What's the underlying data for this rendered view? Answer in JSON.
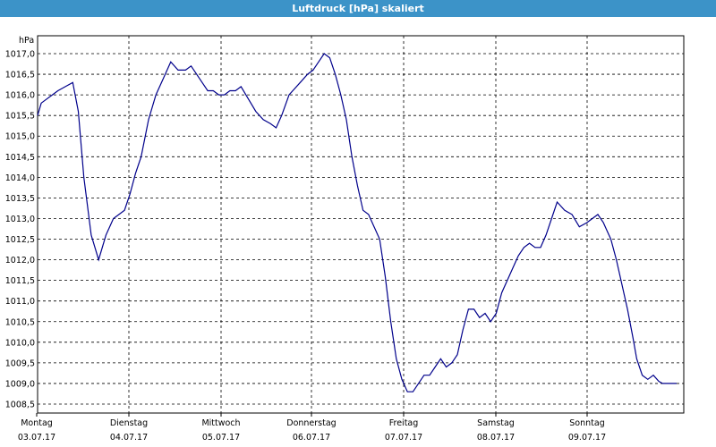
{
  "chart_data": {
    "type": "line",
    "title": "Luftdruck [hPa] skaliert",
    "ylabel": "hPa",
    "ylim": [
      1008.5,
      1017.0
    ],
    "yticks": [
      "1017,0",
      "1016,5",
      "1016,0",
      "1015,5",
      "1015,0",
      "1014,5",
      "1014,0",
      "1013,5",
      "1013,0",
      "1012,5",
      "1012,0",
      "1011,5",
      "1011,0",
      "1010,5",
      "1010,0",
      "1009,5",
      "1009,0",
      "1008,5"
    ],
    "xticks": [
      {
        "day": "Montag",
        "date": "03.07.17"
      },
      {
        "day": "Dienstag",
        "date": "04.07.17"
      },
      {
        "day": "Mittwoch",
        "date": "05.07.17"
      },
      {
        "day": "Donnerstag",
        "date": "06.07.17"
      },
      {
        "day": "Freitag",
        "date": "07.07.17"
      },
      {
        "day": "Samstag",
        "date": "08.07.17"
      },
      {
        "day": "Sonntag",
        "date": "09.07.17"
      }
    ],
    "grid": true,
    "line_color": "#00008b",
    "series": [
      {
        "x_days": [
          0,
          0.04,
          0.1,
          0.16,
          0.22,
          0.3,
          0.38,
          0.44,
          0.5,
          0.58,
          0.66,
          0.74,
          0.76,
          0.82,
          0.88,
          0.94,
          1.0,
          1.06,
          1.12,
          1.2,
          1.28,
          1.36,
          1.44,
          1.52,
          1.6,
          1.66,
          1.72,
          1.78,
          1.84,
          1.9,
          1.96,
          2.02,
          2.08,
          2.14,
          2.2,
          2.28,
          2.36,
          2.44,
          2.52,
          2.58,
          2.64,
          2.72,
          2.76,
          2.84,
          2.92,
          2.98,
          3.04,
          3.1,
          3.16,
          3.22,
          3.28,
          3.34,
          3.4,
          3.46,
          3.52,
          3.58,
          3.64,
          3.7,
          3.76,
          3.82,
          3.88,
          3.94,
          4.0,
          4.06,
          4.12,
          4.18,
          4.24,
          4.3,
          4.36,
          4.42,
          4.48,
          4.54,
          4.6,
          4.66,
          4.72,
          4.78,
          4.84,
          4.9,
          4.96,
          5.02,
          5.08,
          5.14,
          5.2,
          5.26,
          5.32,
          5.38,
          5.44,
          5.5,
          5.56,
          5.62,
          5.7,
          5.78,
          5.86,
          5.94,
          6.0,
          6.06,
          6.12,
          6.16,
          6.2,
          6.26,
          6.32,
          6.38,
          6.44,
          6.48,
          6.54,
          6.6,
          6.66,
          6.72,
          6.76,
          6.82,
          6.88,
          6.94,
          7.0,
          7.06
        ],
        "values": [
          1015.5,
          1015.8,
          1015.9,
          1016.0,
          1016.1,
          1016.2,
          1016.3,
          1015.6,
          1014.0,
          1012.6,
          1012.0,
          1012.6,
          1012.7,
          1013.0,
          1013.1,
          1013.2,
          1013.6,
          1014.1,
          1014.5,
          1015.4,
          1016.0,
          1016.4,
          1016.8,
          1016.6,
          1016.6,
          1016.7,
          1016.5,
          1016.3,
          1016.1,
          1016.1,
          1016.0,
          1016.0,
          1016.1,
          1016.1,
          1016.2,
          1015.9,
          1015.6,
          1015.4,
          1015.3,
          1015.2,
          1015.5,
          1016.0,
          1016.1,
          1016.3,
          1016.5,
          1016.6,
          1016.8,
          1017.0,
          1016.9,
          1016.5,
          1016.0,
          1015.4,
          1014.5,
          1013.8,
          1013.2,
          1013.1,
          1012.8,
          1012.5,
          1011.6,
          1010.5,
          1009.6,
          1009.1,
          1008.8,
          1008.8,
          1009.0,
          1009.2,
          1009.2,
          1009.4,
          1009.6,
          1009.4,
          1009.5,
          1009.7,
          1010.3,
          1010.8,
          1010.8,
          1010.6,
          1010.7,
          1010.5,
          1010.7,
          1011.2,
          1011.5,
          1011.8,
          1012.1,
          1012.3,
          1012.4,
          1012.3,
          1012.3,
          1012.6,
          1013.0,
          1013.4,
          1013.2,
          1013.1,
          1012.8,
          1012.9,
          1013.0,
          1013.1,
          1012.9,
          1012.7,
          1012.5,
          1012.0,
          1011.4,
          1010.8,
          1010.1,
          1009.6,
          1009.2,
          1009.1,
          1009.2,
          1009.05,
          1009.0,
          1009.0,
          1009.0,
          1009.0,
          1009.0,
          1009.0
        ],
        "name": ""
      }
    ]
  }
}
